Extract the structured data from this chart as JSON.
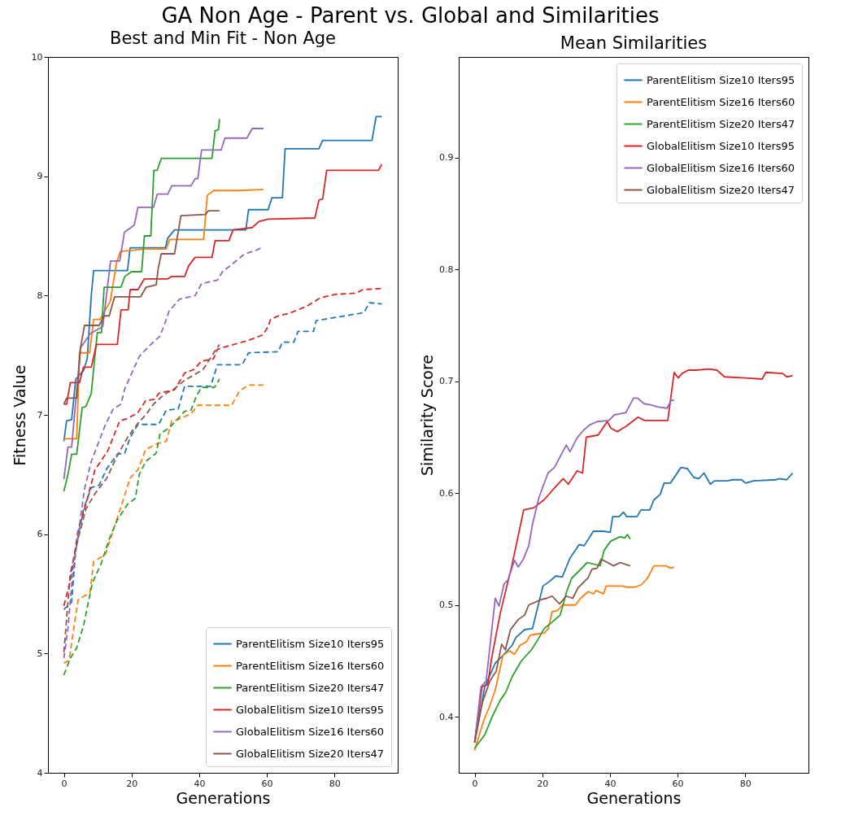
{
  "chart_data": [
    {
      "type": "line",
      "title": "Best and Min Fit - Non Age",
      "xlabel": "Generations",
      "ylabel": "Fitness Value",
      "annotations": [
        "GA Non Age - Parent vs. Global and Similarities"
      ],
      "xlim": [
        -4.7,
        98.7
      ],
      "ylim": [
        4,
        10
      ],
      "xticks": [
        0,
        20,
        40,
        60,
        80
      ],
      "yticks": [
        4,
        5,
        6,
        7,
        8,
        9,
        10
      ],
      "legend": "bottom right",
      "marker": "none",
      "series": [
        {
          "name": "ParentElitism Size10 Iters95",
          "color": "#1f77b4",
          "line_style": "solid",
          "x": [
            0,
            0.8,
            2.3,
            3.5,
            5.8,
            6.9,
            8.1,
            8.8,
            18.8,
            19.6,
            30,
            30.7,
            32.7,
            53.8,
            54.6,
            60.4,
            61.5,
            64.6,
            65.4,
            75.4,
            76.5,
            91.1,
            92.3,
            94
          ],
          "values": [
            6.78,
            6.95,
            6.96,
            7.3,
            7.37,
            7.47,
            8.0,
            8.21,
            8.21,
            8.4,
            8.4,
            8.48,
            8.55,
            8.55,
            8.72,
            8.72,
            8.82,
            8.82,
            9.23,
            9.23,
            9.3,
            9.3,
            9.5,
            9.5
          ]
        },
        {
          "name": "ParentElitism Size16 Iters60",
          "color": "#ff7f0e",
          "line_style": "solid",
          "x": [
            0,
            3.8,
            4.6,
            7.6,
            8.8,
            10.7,
            13.7,
            15.6,
            16.7,
            24,
            30.2,
            31.3,
            41.3,
            42.4,
            44.3,
            51.6,
            59
          ],
          "values": [
            6.8,
            6.8,
            7.52,
            7.52,
            7.8,
            7.8,
            7.95,
            8.28,
            8.37,
            8.39,
            8.39,
            8.47,
            8.47,
            8.84,
            8.88,
            8.88,
            8.89
          ]
        },
        {
          "name": "ParentElitism Size20 Iters47",
          "color": "#2ca02c",
          "line_style": "solid",
          "x": [
            0,
            1.2,
            2.3,
            3.8,
            5.4,
            6.5,
            8.1,
            9.2,
            9.9,
            11.1,
            11.9,
            16.9,
            18,
            20,
            23,
            23.8,
            25.7,
            26.6,
            27.6,
            28.8,
            43.8,
            44.7,
            45.7,
            46
          ],
          "values": [
            6.36,
            6.5,
            6.67,
            6.67,
            7.06,
            7.07,
            7.18,
            7.5,
            7.69,
            7.69,
            8.07,
            8.07,
            8.16,
            8.2,
            8.2,
            8.5,
            8.5,
            9.05,
            9.05,
            9.15,
            9.15,
            9.38,
            9.39,
            9.48
          ]
        },
        {
          "name": "GlobalElitism Size10 Iters95",
          "color": "#d62728",
          "line_style": "solid",
          "x": [
            0,
            0.8,
            1.9,
            4.6,
            5.8,
            8.1,
            9.6,
            15.8,
            16.9,
            19,
            19.6,
            21.9,
            23.8,
            30.7,
            31.9,
            35.7,
            36.9,
            38.8,
            43.8,
            44.7,
            48.8,
            50,
            55.7,
            57.6,
            60.4,
            74.2,
            75.4,
            76.5,
            77.7,
            93,
            94
          ],
          "values": [
            7.09,
            7.09,
            7.27,
            7.27,
            7.4,
            7.4,
            7.59,
            7.59,
            7.88,
            7.88,
            8.05,
            8.05,
            8.14,
            8.14,
            8.16,
            8.16,
            8.25,
            8.32,
            8.32,
            8.46,
            8.46,
            8.55,
            8.57,
            8.62,
            8.64,
            8.65,
            8.8,
            8.81,
            9.05,
            9.05,
            9.1
          ]
        },
        {
          "name": "GlobalElitism Size16 Iters60",
          "color": "#9467bd",
          "line_style": "solid",
          "x": [
            0,
            1.2,
            2.3,
            4.9,
            7.3,
            7.7,
            11.5,
            13.8,
            16.5,
            17.9,
            20.8,
            21.9,
            26.5,
            27.6,
            30.7,
            31.9,
            37.6,
            38.8,
            39.6,
            40.7,
            46.5,
            47.6,
            54.1,
            55.7,
            59
          ],
          "values": [
            6.46,
            6.73,
            6.73,
            7.56,
            7.66,
            7.68,
            7.74,
            8.29,
            8.29,
            8.53,
            8.59,
            8.74,
            8.74,
            8.85,
            8.85,
            8.92,
            8.92,
            8.98,
            8.98,
            9.22,
            9.22,
            9.32,
            9.32,
            9.4,
            9.4
          ]
        },
        {
          "name": "GlobalElitism Size20 Iters47",
          "color": "#8c564b",
          "line_style": "solid",
          "x": [
            0,
            0.8,
            3.8,
            4.9,
            6.1,
            10.4,
            11.9,
            13.4,
            15,
            22.7,
            24.3,
            27.3,
            27.9,
            28.8,
            32.7,
            34.6,
            41.9,
            42.7,
            46
          ],
          "values": [
            7.09,
            7.14,
            7.14,
            7.56,
            7.75,
            7.75,
            7.83,
            7.83,
            7.99,
            7.99,
            8.07,
            8.09,
            8.23,
            8.35,
            8.35,
            8.67,
            8.68,
            8.71,
            8.71
          ]
        },
        {
          "color": "#1f77b4",
          "line_style": "dashed",
          "x": [
            0,
            2.3,
            3.5,
            5.8,
            8.1,
            10.4,
            12.7,
            15.8,
            18,
            19.6,
            21.9,
            28,
            30.3,
            33.8,
            35.7,
            43.4,
            45.4,
            52.7,
            54.6,
            63.4,
            64.6,
            68,
            69.2,
            73.8,
            74.6,
            87.3,
            88.8,
            90.3,
            94
          ],
          "values": [
            5.37,
            5.43,
            5.87,
            6.21,
            6.39,
            6.41,
            6.55,
            6.67,
            6.68,
            6.81,
            6.92,
            6.92,
            7.04,
            7.05,
            7.24,
            7.24,
            7.42,
            7.42,
            7.52,
            7.53,
            7.61,
            7.61,
            7.7,
            7.7,
            7.79,
            7.85,
            7.86,
            7.94,
            7.93
          ]
        },
        {
          "color": "#ff7f0e",
          "line_style": "dashed",
          "x": [
            0,
            1.5,
            4.2,
            7.7,
            8.8,
            12.3,
            15,
            16.9,
            19.6,
            21.9,
            24.2,
            27.7,
            30.3,
            31.9,
            33.8,
            37.6,
            39.6,
            49.6,
            51.9,
            54.6,
            59
          ],
          "values": [
            4.92,
            4.94,
            5.45,
            5.51,
            5.77,
            5.83,
            6.07,
            6.23,
            6.47,
            6.54,
            6.71,
            6.76,
            6.78,
            6.95,
            6.96,
            7.01,
            7.08,
            7.08,
            7.2,
            7.25,
            7.25
          ]
        },
        {
          "color": "#2ca02c",
          "line_style": "dashed",
          "x": [
            0,
            1.9,
            3.8,
            5.8,
            8.4,
            11.1,
            13.4,
            15.8,
            18.8,
            21.1,
            22.3,
            24.2,
            27.3,
            28.4,
            31.1,
            33.8,
            35.7,
            37.6,
            39.2,
            40.7,
            44.5,
            46
          ],
          "values": [
            4.82,
            4.96,
            5.05,
            5.23,
            5.59,
            5.76,
            5.96,
            6.12,
            6.25,
            6.3,
            6.5,
            6.61,
            6.68,
            6.84,
            6.89,
            6.97,
            7.03,
            7.04,
            7.16,
            7.23,
            7.23,
            7.3
          ]
        },
        {
          "color": "#d62728",
          "line_style": "dashed",
          "x": [
            0,
            1.9,
            4.2,
            6.5,
            9.2,
            13,
            16.5,
            18.8,
            21.9,
            24.2,
            26.9,
            28,
            32.7,
            35.7,
            38.4,
            40.7,
            44.2,
            45.4,
            48.8,
            54.2,
            58.8,
            60.4,
            61.1,
            63.4,
            66.5,
            71.8,
            75.7,
            80.3,
            86.4,
            88.4,
            94
          ],
          "values": [
            5.4,
            5.61,
            6.03,
            6.25,
            6.54,
            6.7,
            6.95,
            6.97,
            7.02,
            7.12,
            7.13,
            7.18,
            7.21,
            7.35,
            7.38,
            7.45,
            7.47,
            7.55,
            7.58,
            7.62,
            7.67,
            7.74,
            7.8,
            7.83,
            7.85,
            7.91,
            7.98,
            8.01,
            8.02,
            8.05,
            8.06
          ]
        },
        {
          "color": "#9467bd",
          "line_style": "dashed",
          "x": [
            0,
            1.2,
            2.7,
            4.6,
            6.1,
            8.1,
            10.4,
            12.3,
            14.6,
            16.9,
            18,
            22.3,
            25.3,
            28.4,
            30.3,
            31.1,
            34.2,
            38.8,
            40.7,
            45.4,
            46.9,
            49.2,
            53,
            54.6,
            56.9,
            59
          ],
          "values": [
            4.96,
            5.21,
            5.7,
            6.07,
            6.38,
            6.61,
            6.78,
            6.92,
            7.05,
            7.09,
            7.22,
            7.49,
            7.58,
            7.66,
            7.8,
            7.87,
            7.97,
            8.0,
            8.1,
            8.13,
            8.2,
            8.25,
            8.34,
            8.36,
            8.38,
            8.41
          ]
        },
        {
          "color": "#8c564b",
          "line_style": "dashed",
          "x": [
            0,
            1.9,
            4.2,
            6.5,
            9.2,
            12.7,
            15.8,
            18.8,
            21.9,
            24.2,
            26.5,
            29.6,
            32.7,
            35.7,
            38.8,
            41.1,
            45,
            46
          ],
          "values": [
            5.01,
            5.67,
            5.96,
            6.21,
            6.34,
            6.47,
            6.66,
            6.81,
            6.93,
            7.0,
            7.09,
            7.17,
            7.22,
            7.29,
            7.34,
            7.38,
            7.55,
            7.59
          ]
        }
      ]
    },
    {
      "type": "line",
      "title": "Mean Similarities",
      "xlabel": "Generations",
      "ylabel": "Similarity Score",
      "xlim": [
        -4.7,
        98.7
      ],
      "ylim": [
        0.35,
        0.99
      ],
      "xticks": [
        0,
        20,
        40,
        60,
        80
      ],
      "yticks": [
        0.4,
        0.5,
        0.6,
        0.7,
        0.8,
        0.9
      ],
      "legend": "top right",
      "marker": "none",
      "series": [
        {
          "name": "ParentElitism Size10 Iters95",
          "color": "#1f77b4",
          "line_style": "solid",
          "x": [
            0,
            3,
            6.1,
            8.4,
            11.1,
            12.2,
            14.8,
            17.1,
            20.2,
            22.1,
            24,
            25.9,
            28.2,
            30.9,
            32.4,
            35.1,
            38.1,
            40.1,
            40.8,
            42.7,
            44,
            45,
            48,
            49.2,
            51.8,
            53,
            54.9,
            56,
            57.9,
            61,
            62.9,
            64.8,
            66.3,
            67.8,
            69.7,
            70.9,
            74.7,
            76.3,
            78.9,
            80.1,
            82.4,
            89.2,
            90,
            92.3,
            94
          ],
          "values": [
            0.377,
            0.427,
            0.448,
            0.455,
            0.464,
            0.471,
            0.478,
            0.479,
            0.517,
            0.521,
            0.526,
            0.525,
            0.542,
            0.554,
            0.553,
            0.566,
            0.566,
            0.565,
            0.579,
            0.579,
            0.583,
            0.579,
            0.579,
            0.585,
            0.585,
            0.594,
            0.599,
            0.609,
            0.609,
            0.623,
            0.622,
            0.614,
            0.613,
            0.618,
            0.608,
            0.611,
            0.611,
            0.612,
            0.612,
            0.609,
            0.611,
            0.612,
            0.613,
            0.612,
            0.618
          ]
        },
        {
          "name": "ParentElitism Size16 Iters60",
          "color": "#ff7f0e",
          "line_style": "solid",
          "x": [
            0,
            2.6,
            4.5,
            6.1,
            8.4,
            10.3,
            11.8,
            13.4,
            15.3,
            16.4,
            18.3,
            20.6,
            21.8,
            22.9,
            24.5,
            26,
            29.8,
            31.3,
            33.6,
            35.1,
            35.9,
            38.1,
            38.9,
            43.5,
            45,
            47.3,
            49.2,
            51.1,
            53,
            56.5,
            58,
            59
          ],
          "values": [
            0.37,
            0.396,
            0.41,
            0.424,
            0.455,
            0.459,
            0.456,
            0.464,
            0.467,
            0.473,
            0.474,
            0.475,
            0.479,
            0.494,
            0.495,
            0.5,
            0.5,
            0.506,
            0.512,
            0.51,
            0.513,
            0.51,
            0.517,
            0.517,
            0.516,
            0.516,
            0.518,
            0.524,
            0.535,
            0.535,
            0.533,
            0.534
          ]
        },
        {
          "name": "ParentElitism Size20 Iters47",
          "color": "#2ca02c",
          "line_style": "solid",
          "x": [
            0,
            3,
            5.3,
            7.6,
            9.2,
            11.1,
            13.8,
            16.8,
            18.7,
            20.6,
            23,
            25.3,
            27.2,
            28.7,
            30.7,
            33.3,
            36,
            37.1,
            38.3,
            40.2,
            42.9,
            44.4,
            45.2,
            46
          ],
          "values": [
            0.372,
            0.384,
            0.401,
            0.415,
            0.422,
            0.436,
            0.45,
            0.46,
            0.469,
            0.479,
            0.485,
            0.491,
            0.512,
            0.524,
            0.53,
            0.538,
            0.536,
            0.535,
            0.549,
            0.557,
            0.561,
            0.56,
            0.563,
            0.559
          ]
        },
        {
          "name": "GlobalElitism Size10 Iters95",
          "color": "#d62728",
          "line_style": "solid",
          "x": [
            0,
            2.2,
            3.9,
            5,
            7.6,
            11,
            14.5,
            17.5,
            20.5,
            24.3,
            26.2,
            27.7,
            30.3,
            31.9,
            33,
            36.5,
            39.2,
            40.3,
            42.2,
            44.9,
            48.3,
            50.2,
            54.4,
            57.1,
            59,
            60.2,
            61.3,
            63.2,
            65.5,
            69.3,
            71.6,
            73.9,
            80,
            85,
            86.1,
            91.1,
            92.3,
            94
          ],
          "values": [
            0.377,
            0.427,
            0.429,
            0.452,
            0.493,
            0.535,
            0.585,
            0.587,
            0.594,
            0.607,
            0.613,
            0.608,
            0.62,
            0.618,
            0.65,
            0.652,
            0.664,
            0.658,
            0.655,
            0.66,
            0.668,
            0.665,
            0.665,
            0.665,
            0.708,
            0.703,
            0.707,
            0.71,
            0.71,
            0.711,
            0.71,
            0.704,
            0.703,
            0.702,
            0.708,
            0.707,
            0.704,
            0.705
          ]
        },
        {
          "name": "GlobalElitism Size16 Iters60",
          "color": "#9467bd",
          "line_style": "solid",
          "x": [
            0,
            1.9,
            3.4,
            6.1,
            7.2,
            8.7,
            9.8,
            11.8,
            12.9,
            14.4,
            16,
            17.1,
            19,
            21.7,
            23.6,
            27.1,
            28.2,
            30.2,
            32.1,
            34,
            36.3,
            39.7,
            41.3,
            44.7,
            47,
            48.2,
            50.1,
            52,
            54.3,
            56.9,
            58.1,
            59
          ],
          "values": [
            0.377,
            0.427,
            0.432,
            0.506,
            0.499,
            0.519,
            0.522,
            0.54,
            0.534,
            0.541,
            0.553,
            0.572,
            0.596,
            0.618,
            0.623,
            0.643,
            0.637,
            0.649,
            0.656,
            0.661,
            0.664,
            0.665,
            0.67,
            0.672,
            0.685,
            0.685,
            0.68,
            0.679,
            0.677,
            0.676,
            0.683,
            0.683
          ]
        },
        {
          "name": "GlobalElitism Size20 Iters47",
          "color": "#8c564b",
          "line_style": "solid",
          "x": [
            0,
            2.3,
            4.5,
            6.4,
            8,
            9.1,
            10.6,
            12.9,
            14.8,
            16,
            19.8,
            21.3,
            22.9,
            25.1,
            27.1,
            29,
            30.5,
            32.4,
            33.5,
            34.7,
            36.2,
            37.4,
            39.3,
            41.1,
            43,
            46
          ],
          "values": [
            0.377,
            0.413,
            0.432,
            0.441,
            0.465,
            0.46,
            0.478,
            0.487,
            0.491,
            0.5,
            0.505,
            0.506,
            0.508,
            0.501,
            0.508,
            0.506,
            0.515,
            0.521,
            0.524,
            0.532,
            0.533,
            0.541,
            0.538,
            0.535,
            0.538,
            0.535
          ]
        }
      ]
    }
  ]
}
